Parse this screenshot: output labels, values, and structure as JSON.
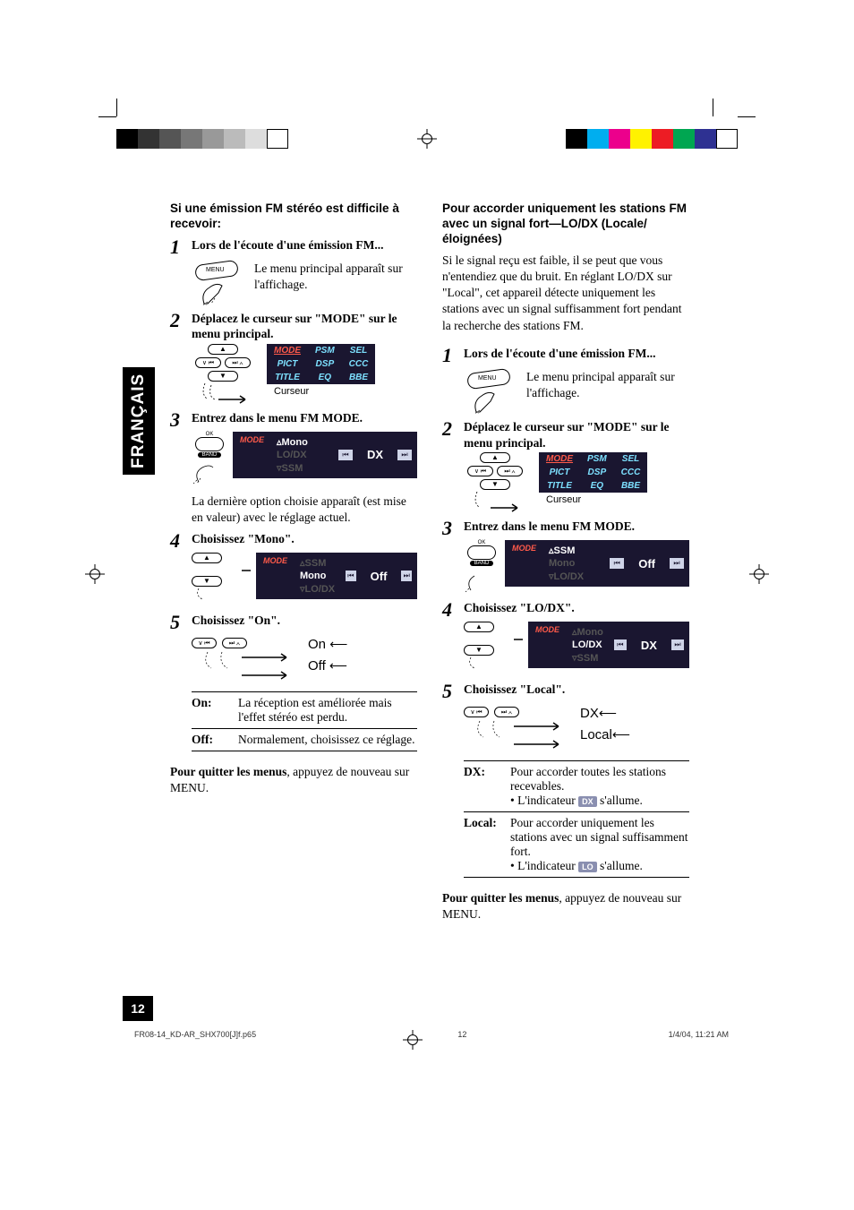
{
  "meta": {
    "page_number": "12",
    "language_tab": "FRANÇAIS",
    "footer_file": "FR08-14_KD-AR_SHX700[J]f.p65",
    "footer_page": "12",
    "footer_date": "1/4/04, 11:21 AM"
  },
  "printbar_left": [
    "#000000",
    "#333333",
    "#555555",
    "#777777",
    "#999999",
    "#bbbbbb",
    "#dddddd",
    "#ffffff"
  ],
  "printbar_right": [
    "#000000",
    "#00aeef",
    "#ec008c",
    "#fff200",
    "#ed1c24",
    "#00a651",
    "#2e3192",
    "#ffffff"
  ],
  "lcd": {
    "bg": "#1a1630",
    "text_normal": "#7de0ff",
    "text_selected": "#ff5a4a",
    "text_white": "#ffffff",
    "text_dim": "#6a6f8a",
    "grid": [
      [
        "MODE",
        "PSM",
        "SEL"
      ],
      [
        "PICT",
        "DSP",
        "CCC"
      ],
      [
        "TITLE",
        "EQ",
        "BBE"
      ]
    ],
    "mode_label": "MODE",
    "cursor_label": "Curseur"
  },
  "left": {
    "heading": "Si une émission FM stéréo est difficile à recevoir:",
    "step1": "Lors de l'écoute d'une émission FM...",
    "menu_button_label": "MENU",
    "menu_text": "Le menu principal apparaît sur l'affichage.",
    "step2": "Déplacez le curseur sur \"MODE\" sur le menu principal.",
    "step3": "Entrez dans le menu FM MODE.",
    "ok_top": "OK",
    "ok_bottom": "BAND",
    "lcd3_opts": [
      "Mono",
      "LO/DX",
      "SSM"
    ],
    "lcd3_active": "Mono",
    "lcd3_val": "DX",
    "note3": "La dernière option choisie apparaît (est mise en valeur) avec le réglage actuel.",
    "step4": "Choisissez \"Mono\".",
    "lcd4_opts": [
      "SSM",
      "Mono",
      "LO/DX"
    ],
    "lcd4_active": "Mono",
    "lcd4_val": "Off",
    "step5": "Choisissez \"On\".",
    "toggle_a": "On",
    "toggle_b": "Off",
    "table": [
      {
        "k": "On:",
        "v": "La réception est améliorée mais l'effet stéréo est perdu."
      },
      {
        "k": "Off:",
        "v": "Normalement, choisissez ce réglage."
      }
    ],
    "exit_bold": "Pour quitter les menus",
    "exit_rest": ", appuyez de nouveau sur MENU."
  },
  "right": {
    "heading": "Pour accorder uniquement les stations FM avec un signal fort—LO/DX (Locale/éloignées)",
    "intro": "Si le signal reçu est faible, il se peut que vous n'entendiez que du bruit. En réglant LO/DX sur \"Local\", cet appareil détecte uniquement les stations avec un signal suffisamment fort pendant la recherche des stations FM.",
    "step1": "Lors de l'écoute d'une émission FM...",
    "menu_text": "Le menu principal apparaît sur l'affichage.",
    "menu_button_label": "MENU",
    "step2": "Déplacez le curseur sur \"MODE\" sur le menu principal.",
    "step3": "Entrez dans le menu FM MODE.",
    "lcd3_opts": [
      "SSM",
      "Mono",
      "LO/DX"
    ],
    "lcd3_active": "SSM",
    "lcd3_val": "Off",
    "step4": "Choisissez \"LO/DX\".",
    "lcd4_opts": [
      "Mono",
      "LO/DX",
      "SSM"
    ],
    "lcd4_active": "LO/DX",
    "lcd4_val": "DX",
    "step5": "Choisissez \"Local\".",
    "toggle_a": "DX",
    "toggle_b": "Local",
    "table": [
      {
        "k": "DX:",
        "v": "Pour accorder toutes les stations recevables.",
        "ind": "DX",
        "ind_line": "• L'indicateur ",
        "ind_tail": " s'allume."
      },
      {
        "k": "Local:",
        "v": "Pour accorder uniquement les stations avec un signal suffisamment fort.",
        "ind": "LO",
        "ind_line": "• L'indicateur ",
        "ind_tail": " s'allume."
      }
    ],
    "exit_bold": "Pour quitter les menus",
    "exit_rest": ", appuyez de nouveau sur MENU."
  }
}
